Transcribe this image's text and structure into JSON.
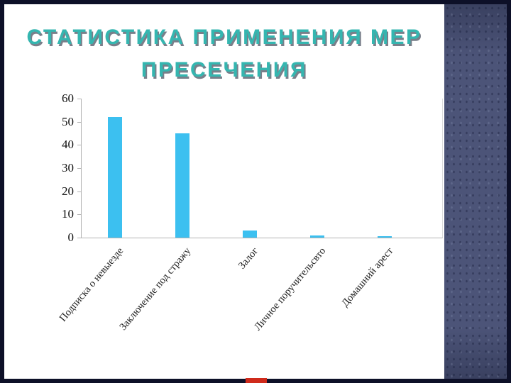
{
  "slide": {
    "title_line1": "СТАТИСТИКА ПРИМЕНЕНИЯ МЕР",
    "title_line2": "ПРЕСЕЧЕНИЯ",
    "title_color": "#35b6b0"
  },
  "chart_data": {
    "type": "bar",
    "title": "Статистика применения мер пресечения",
    "categories": [
      "Подписка о невыезде",
      "Заключение под стражу",
      "Залог",
      "Личное поручительсвто",
      "Домашний арест"
    ],
    "values": [
      52,
      45,
      3,
      1,
      0.5
    ],
    "xlabel": "",
    "ylabel": "",
    "ylim": [
      0,
      60
    ],
    "yticks": [
      0,
      10,
      20,
      30,
      40,
      50,
      60
    ],
    "grid": false,
    "legend": false,
    "bar_color": "#3cc0f0"
  }
}
